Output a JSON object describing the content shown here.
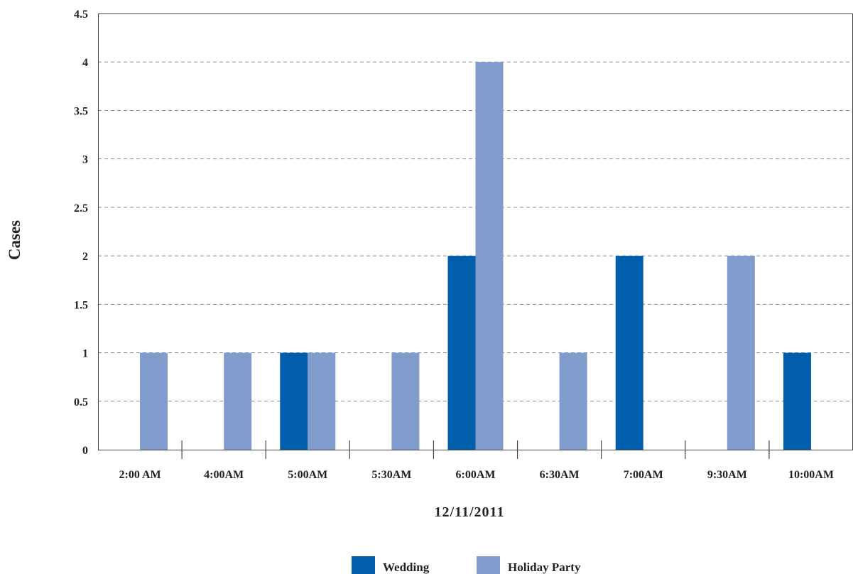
{
  "chart_data": {
    "type": "bar",
    "title": "",
    "xlabel": "12/11/2011",
    "ylabel": "Cases",
    "categories": [
      "2:00 AM",
      "4:00AM",
      "5:00AM",
      "5:30AM",
      "6:00AM",
      "6:30AM",
      "7:00AM",
      "9:30AM",
      "10:00AM"
    ],
    "series": [
      {
        "name": "Wedding",
        "color": "#005eac",
        "values": [
          0,
          0,
          1,
          0,
          2,
          0,
          2,
          0,
          1
        ]
      },
      {
        "name": "Holiday Party",
        "color": "#7f9ccc",
        "values": [
          1,
          1,
          1,
          1,
          4,
          1,
          0,
          2,
          0
        ]
      }
    ],
    "ylim": [
      0,
      4.5
    ],
    "yticks": [
      "0",
      "0.5",
      "1",
      "1.5",
      "2",
      "2.5",
      "3",
      "3.5",
      "4",
      "4.5"
    ],
    "grid": true,
    "legend_position": "bottom"
  }
}
